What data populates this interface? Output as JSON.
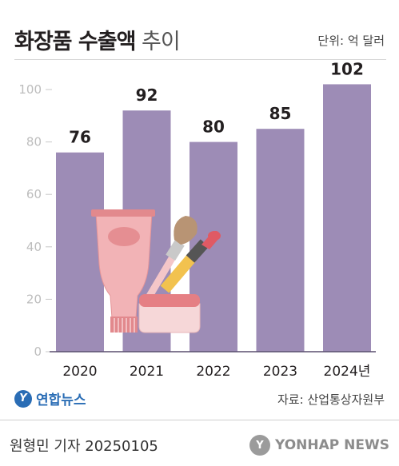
{
  "title_bold": "화장품 수출액",
  "title_rest": "추이",
  "unit_label": "단위: 억 달러",
  "chart_data": {
    "type": "bar",
    "categories": [
      "2020",
      "2021",
      "2022",
      "2023",
      "2024년"
    ],
    "values": [
      76,
      92,
      80,
      85,
      102
    ],
    "ylim": [
      0,
      100
    ],
    "yticks": [
      0,
      20,
      40,
      60,
      80,
      100
    ],
    "bar_color": "#9d8cb6",
    "grid": false
  },
  "logo_text": "연합뉴스",
  "source": "자료: 산업통상자원부",
  "byline": "원형민 기자  20250105",
  "agency_name": "YONHAP NEWS",
  "icons": [
    "cosmetics-illustration",
    "yonhap-logo-icon",
    "yonhap-news-icon"
  ]
}
